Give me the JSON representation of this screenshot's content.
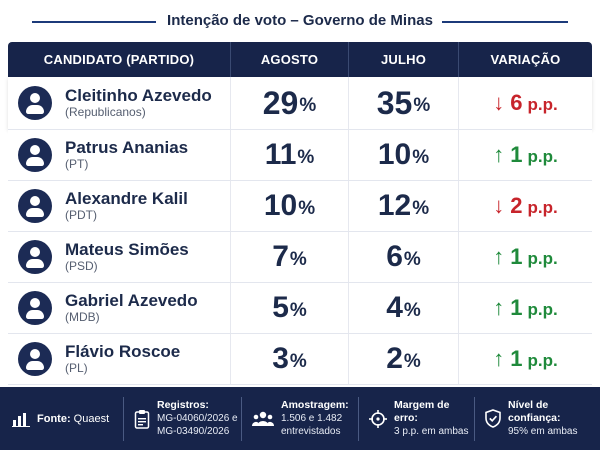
{
  "title": "Intenção de voto – Governo de Minas",
  "headers": {
    "candidate": "CANDIDATO (PARTIDO)",
    "august": "AGOSTO",
    "july": "JULHO",
    "variation": "VARIAÇÃO"
  },
  "percent_unit": "%",
  "pp_unit": "p.p.",
  "arrows": {
    "down": "↓",
    "up": "↑"
  },
  "colors": {
    "navy": "#17244a",
    "down": "#c7242b",
    "up": "#1f8a3b"
  },
  "chart_data": {
    "type": "table",
    "title": "Intenção de voto – Governo de Minas",
    "columns": [
      "CANDIDATO (PARTIDO)",
      "AGOSTO",
      "JULHO",
      "VARIAÇÃO"
    ],
    "rows": [
      {
        "name": "Cleitinho Azevedo",
        "party": "(Republicanos)",
        "august": "29",
        "july": "35",
        "change": "6",
        "direction": "down"
      },
      {
        "name": "Patrus Ananias",
        "party": "(PT)",
        "august": "11",
        "july": "10",
        "change": "1",
        "direction": "up"
      },
      {
        "name": "Alexandre Kalil",
        "party": "(PDT)",
        "august": "10",
        "july": "12",
        "change": "2",
        "direction": "down"
      },
      {
        "name": "Mateus Simões",
        "party": "(PSD)",
        "august": "7",
        "july": "6",
        "change": "1",
        "direction": "up"
      },
      {
        "name": "Gabriel Azevedo",
        "party": "(MDB)",
        "august": "5",
        "july": "4",
        "change": "1",
        "direction": "up"
      },
      {
        "name": "Flávio Roscoe",
        "party": "(PL)",
        "august": "3",
        "july": "2",
        "change": "1",
        "direction": "up"
      }
    ]
  },
  "footer": {
    "source_label": "Fonte:",
    "source_value": "Quaest",
    "registros_label": "Registros:",
    "registros_line1": "MG-04060/2026 e",
    "registros_line2": "MG-03490/2026",
    "amostragem_label": "Amostragem:",
    "amostragem_line1": "1.506 e 1.482",
    "amostragem_line2": "entrevistados",
    "margem_label": "Margem de erro:",
    "margem_value": "3 p.p. em ambas",
    "confianca_label": "Nível de confiança:",
    "confianca_value": "95% em ambas"
  }
}
